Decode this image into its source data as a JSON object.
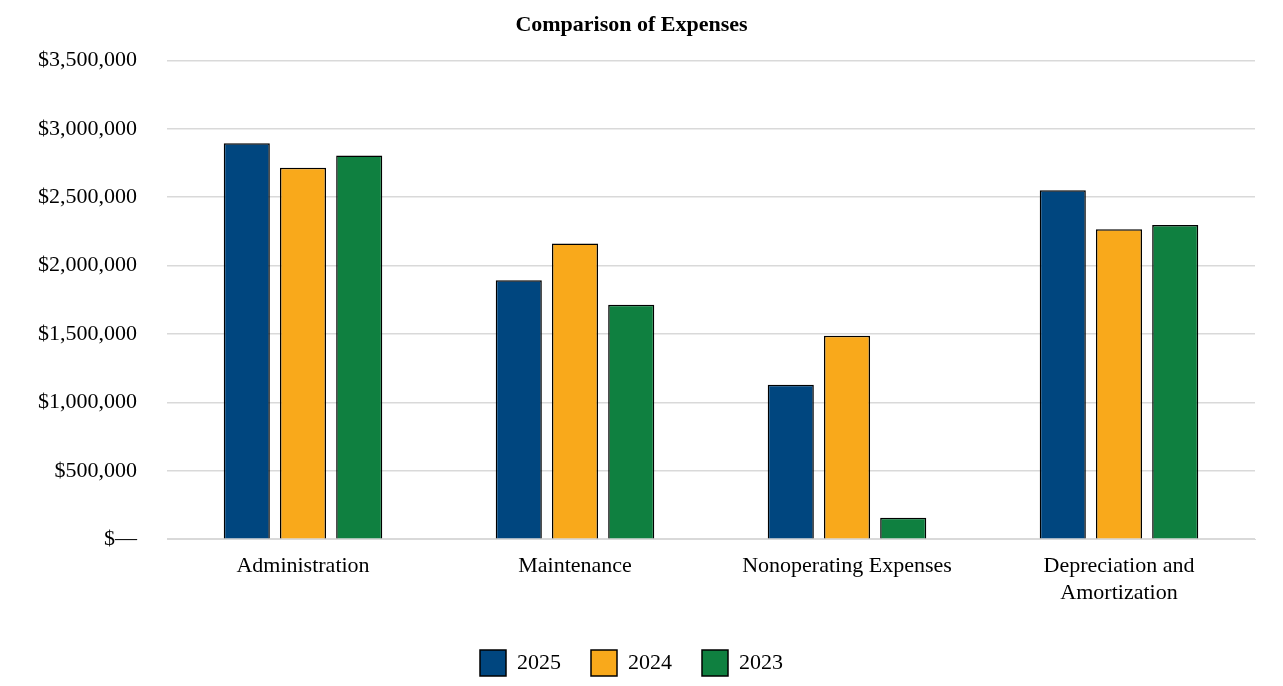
{
  "chart_data": {
    "type": "bar",
    "title": "Comparison of Expenses",
    "categories": [
      "Administration",
      "Maintenance",
      "Nonoperating Expenses",
      "Depreciation and Amortization"
    ],
    "series": [
      {
        "name": "2025",
        "color": "#00467f",
        "values": [
          2895000,
          1892000,
          1129000,
          2550000
        ]
      },
      {
        "name": "2024",
        "color": "#f9a91b",
        "values": [
          2715000,
          2162000,
          1488000,
          2266000
        ]
      },
      {
        "name": "2023",
        "color": "#0f8040",
        "values": [
          2805000,
          1713000,
          157000,
          2296000
        ]
      }
    ],
    "ylim": [
      0,
      3500000
    ],
    "yticks": [
      {
        "value": 0,
        "label": "$—"
      },
      {
        "value": 500000,
        "label": "$500,000"
      },
      {
        "value": 1000000,
        "label": "$1,000,000"
      },
      {
        "value": 1500000,
        "label": "$1,500,000"
      },
      {
        "value": 2000000,
        "label": "$2,000,000"
      },
      {
        "value": 2500000,
        "label": "$2,500,000"
      },
      {
        "value": 3000000,
        "label": "$3,000,000"
      },
      {
        "value": 3500000,
        "label": "$3,500,000"
      }
    ],
    "grid": "y",
    "legend": "bottom"
  }
}
